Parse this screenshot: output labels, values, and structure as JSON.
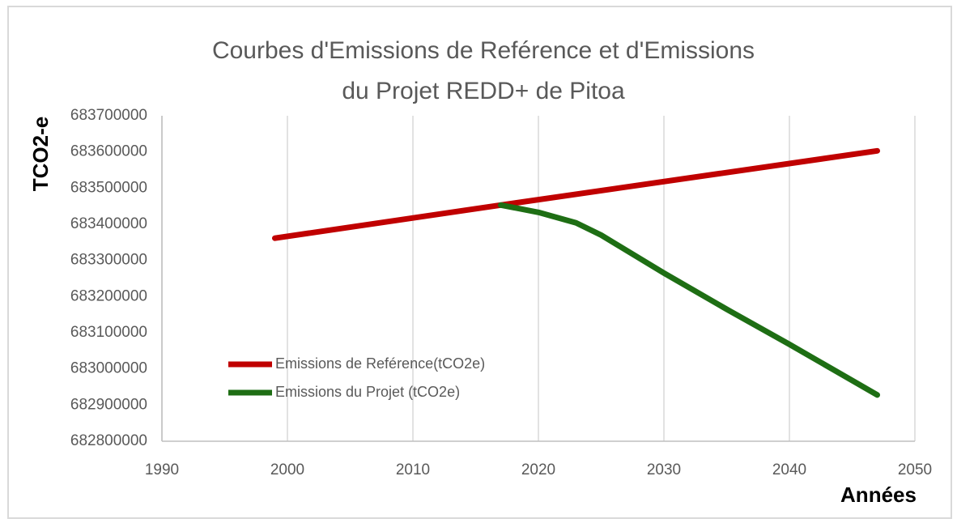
{
  "chart_data": {
    "type": "line",
    "title": [
      "Courbes d'Emissions de Reférence et d'Emissions",
      "du Projet REDD+ de Pitoa"
    ],
    "y_label": "TCO2-e",
    "x_label": "Années",
    "series": [
      {
        "name": "Emissions de Reférence(tCO2e)",
        "color": "#c00000",
        "x": [
          1999,
          2017,
          2047
        ],
        "values": [
          683361500,
          683453000,
          683603000
        ]
      },
      {
        "name": "Emissions du Projet (tCO2e)",
        "color": "#1e6e14",
        "x": [
          2017,
          2020,
          2023,
          2025,
          2030,
          2035,
          2040,
          2045,
          2047
        ],
        "values": [
          683453000,
          683433000,
          683404000,
          683370000,
          683265000,
          683165000,
          683068000,
          682968000,
          682928000
        ]
      }
    ],
    "xlim": [
      1990,
      2050
    ],
    "xticks": [
      1990,
      2000,
      2010,
      2020,
      2030,
      2040,
      2050
    ],
    "ylim": [
      682800000,
      683700000
    ],
    "yticks": [
      682800000,
      682900000,
      683000000,
      683100000,
      683200000,
      683300000,
      683400000,
      683500000,
      683600000,
      683700000
    ],
    "grid": "x",
    "legend": "left"
  }
}
